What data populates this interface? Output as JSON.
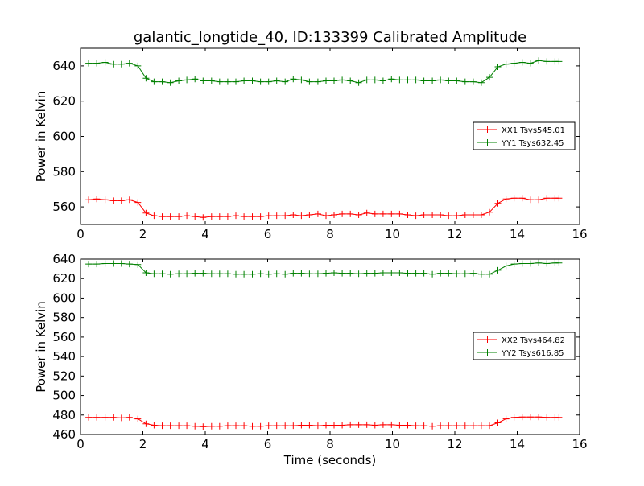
{
  "chart_data": [
    {
      "type": "line",
      "title": "galantic_longtide_40, ID:133399 Calibrated Amplitude",
      "xlabel": "",
      "ylabel": "Power in Kelvin",
      "xlim": [
        0,
        16
      ],
      "ylim": [
        550,
        650
      ],
      "xticks": [
        "0",
        "2",
        "4",
        "6",
        "8",
        "10",
        "12",
        "14",
        "16"
      ],
      "yticks": [
        "560",
        "580",
        "600",
        "620",
        "640"
      ],
      "grid": false,
      "legend_position": "center-right",
      "x": [
        0.26,
        0.52,
        0.79,
        1.05,
        1.31,
        1.57,
        1.84,
        2.1,
        2.36,
        2.62,
        2.88,
        3.15,
        3.41,
        3.67,
        3.93,
        4.2,
        4.46,
        4.72,
        4.98,
        5.24,
        5.51,
        5.77,
        6.03,
        6.29,
        6.56,
        6.82,
        7.08,
        7.34,
        7.61,
        7.87,
        8.13,
        8.39,
        8.65,
        8.92,
        9.18,
        9.44,
        9.7,
        9.97,
        10.23,
        10.49,
        10.75,
        11.01,
        11.28,
        11.54,
        11.8,
        12.06,
        12.33,
        12.59,
        12.85,
        13.11,
        13.38,
        13.64,
        13.9,
        14.16,
        14.42,
        14.69,
        14.95,
        15.21,
        15.34
      ],
      "series": [
        {
          "name": "XX1 Tsys545.01",
          "color": "#ff0000",
          "values": [
            564,
            564.5,
            564,
            563.5,
            563.5,
            564,
            562.5,
            556.5,
            555,
            554.5,
            554.5,
            554.5,
            555,
            554.5,
            554,
            554.5,
            554.5,
            554.5,
            555,
            554.5,
            554.5,
            554.5,
            555,
            555,
            555,
            555.5,
            555,
            555.5,
            556,
            555,
            555.5,
            556,
            556,
            555.5,
            556.5,
            556,
            556,
            556,
            556,
            555.5,
            555,
            555.5,
            555.5,
            555.5,
            555,
            555,
            555.5,
            555.5,
            555.5,
            557,
            562,
            564.5,
            565,
            565,
            564,
            564,
            565,
            565,
            565
          ]
        },
        {
          "name": "YY1 Tsys632.45",
          "color": "#008000",
          "values": [
            641.5,
            641.5,
            642,
            641,
            641,
            641.5,
            640,
            633,
            631,
            631,
            630.5,
            631.5,
            632,
            632.5,
            631.5,
            631.5,
            631,
            631,
            631,
            631.5,
            631.5,
            631,
            631,
            631.5,
            631,
            632.5,
            632,
            631,
            631,
            631.5,
            631.5,
            632,
            631.5,
            630.5,
            632,
            632,
            631.5,
            632.5,
            632,
            632,
            632,
            631.5,
            631.5,
            632,
            631.5,
            631.5,
            631,
            631,
            630.5,
            633.5,
            639.5,
            641,
            641.5,
            642,
            641.5,
            643,
            642.5,
            642.5,
            642.5
          ]
        }
      ]
    },
    {
      "type": "line",
      "title": "",
      "xlabel": "Time (seconds)",
      "ylabel": "Power in Kelvin",
      "xlim": [
        0,
        16
      ],
      "ylim": [
        460,
        640
      ],
      "xticks": [
        "0",
        "2",
        "4",
        "6",
        "8",
        "10",
        "12",
        "14",
        "16"
      ],
      "yticks": [
        "460",
        "480",
        "500",
        "520",
        "540",
        "560",
        "580",
        "600",
        "620",
        "640"
      ],
      "grid": false,
      "legend_position": "center-right",
      "x": [
        0.26,
        0.52,
        0.79,
        1.05,
        1.31,
        1.57,
        1.84,
        2.1,
        2.36,
        2.62,
        2.88,
        3.15,
        3.41,
        3.67,
        3.93,
        4.2,
        4.46,
        4.72,
        4.98,
        5.24,
        5.51,
        5.77,
        6.03,
        6.29,
        6.56,
        6.82,
        7.08,
        7.34,
        7.61,
        7.87,
        8.13,
        8.39,
        8.65,
        8.92,
        9.18,
        9.44,
        9.7,
        9.97,
        10.23,
        10.49,
        10.75,
        11.01,
        11.28,
        11.54,
        11.8,
        12.06,
        12.33,
        12.59,
        12.85,
        13.11,
        13.38,
        13.64,
        13.9,
        14.16,
        14.42,
        14.69,
        14.95,
        15.21,
        15.34
      ],
      "series": [
        {
          "name": "XX2 Tsys464.82",
          "color": "#ff0000",
          "values": [
            477.5,
            477.5,
            477.5,
            477.5,
            477,
            477.5,
            476,
            471,
            469.5,
            469,
            469,
            469,
            469,
            468.5,
            468,
            468.5,
            468.5,
            469,
            469,
            469,
            468.5,
            468.5,
            469,
            469,
            469,
            469,
            469.5,
            469.5,
            469,
            469.5,
            469.5,
            469.5,
            470,
            470,
            470,
            469.5,
            470,
            470,
            469.5,
            469.5,
            469,
            469,
            468.5,
            469,
            469,
            469,
            469,
            469,
            469,
            469,
            472,
            476,
            477.5,
            478,
            478,
            478,
            477.5,
            477.5,
            477.5
          ]
        },
        {
          "name": "YY2 Tsys616.85",
          "color": "#008000",
          "values": [
            635,
            635,
            635.5,
            635.5,
            635.5,
            635,
            634.5,
            626,
            625,
            625,
            624.5,
            625,
            625,
            625.5,
            625.5,
            625,
            625,
            625,
            624.5,
            624.5,
            624.5,
            625,
            624.5,
            625,
            624.5,
            625.5,
            625.5,
            625,
            625,
            625.5,
            626,
            625.5,
            625.5,
            625,
            625.5,
            625.5,
            626,
            626,
            626,
            625.5,
            625.5,
            625.5,
            624.5,
            625.5,
            625.5,
            625,
            625,
            625.5,
            624.5,
            624.5,
            628.5,
            633,
            635,
            635.5,
            635.5,
            636,
            635.5,
            636,
            636
          ]
        }
      ]
    }
  ]
}
